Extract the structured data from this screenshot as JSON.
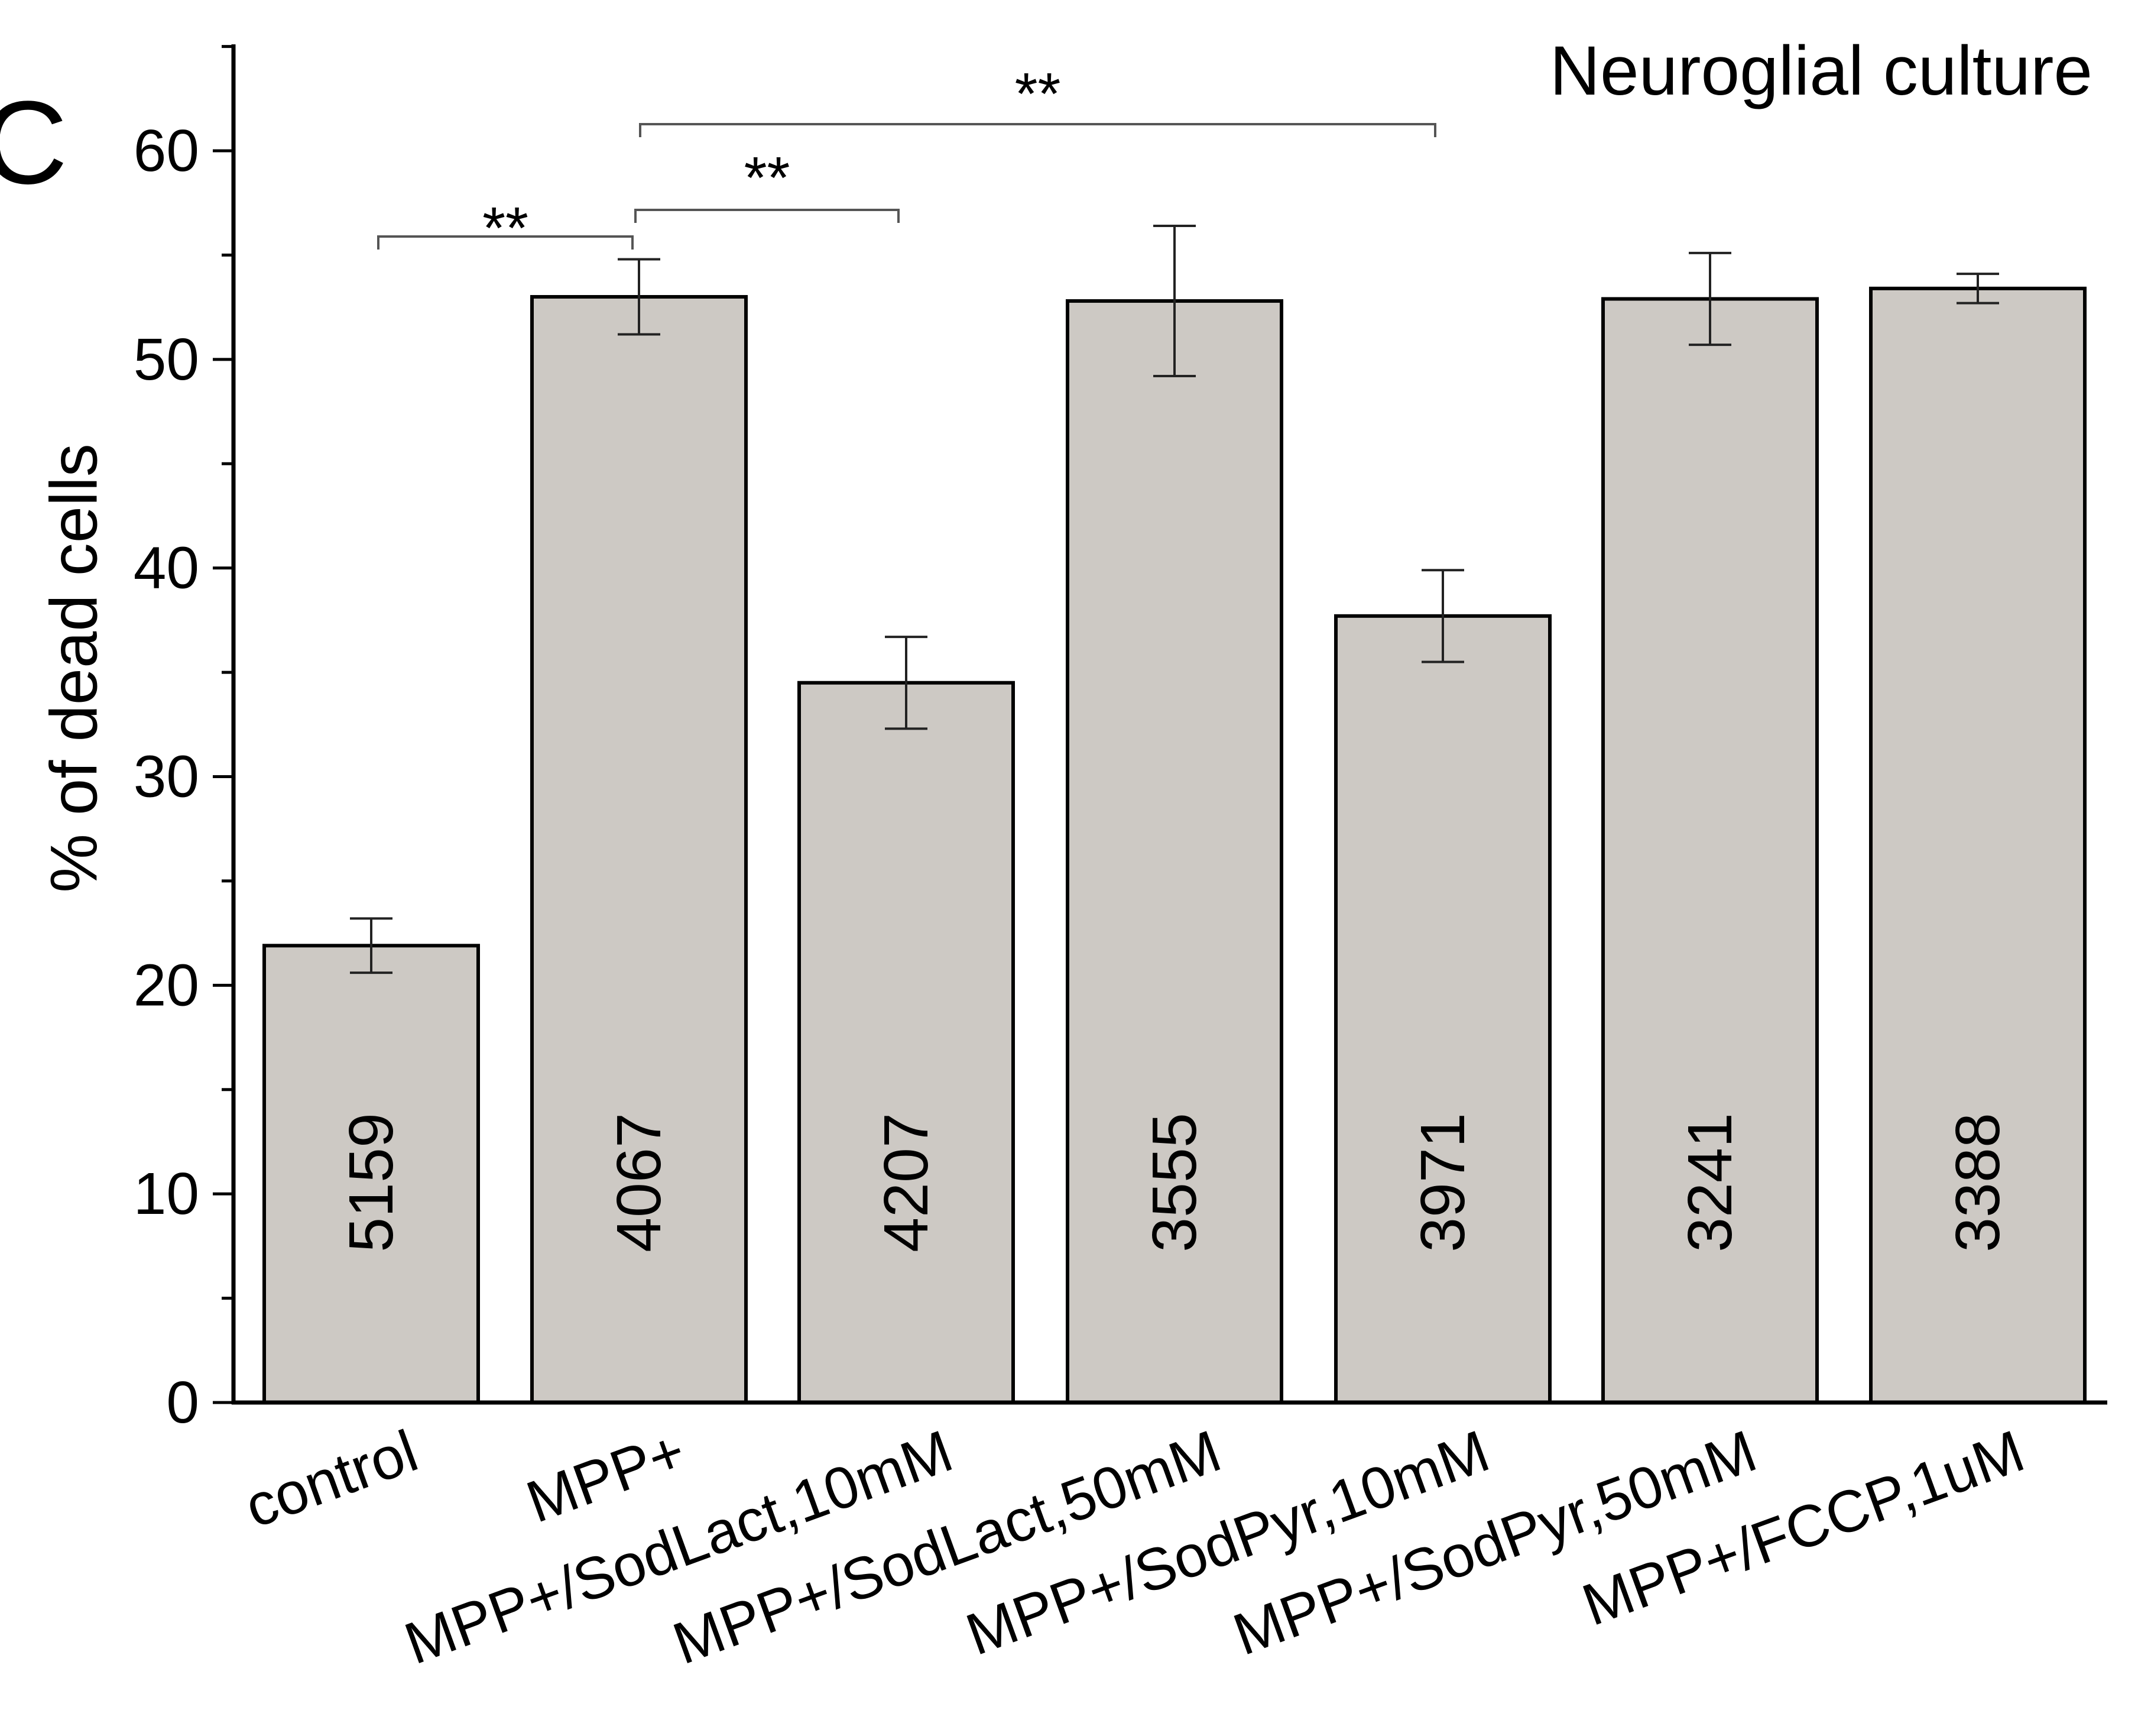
{
  "panel_label": "C",
  "chart_data": {
    "type": "bar",
    "title": "Neuroglial culture",
    "xlabel": "",
    "ylabel": "% of dead cells",
    "ylim": [
      0,
      65
    ],
    "yticks": [
      0,
      10,
      20,
      30,
      40,
      50,
      60
    ],
    "ytick_labels": [
      "0",
      "10",
      "20",
      "30",
      "40",
      "50",
      "60"
    ],
    "grid": false,
    "categories": [
      "control",
      "MPP+",
      "MPP+/SodLact,10mM",
      "MPP+/SodLact,50mM",
      "MPP+/SodPyr,10mM",
      "MPP+/SodPyr,50mM",
      "MPP+/FCCP,1uM"
    ],
    "values": [
      21.9,
      53.0,
      34.5,
      52.8,
      37.7,
      52.9,
      53.4
    ],
    "error": [
      1.3,
      1.8,
      2.2,
      3.6,
      2.2,
      2.2,
      0.7
    ],
    "n_labels": [
      "5159",
      "4067",
      "4207",
      "3555",
      "3971",
      "3241",
      "3388"
    ],
    "bar_color": "#cdc9c4",
    "significance": [
      {
        "from": 0,
        "to": 1,
        "label": "**"
      },
      {
        "from": 1,
        "to": 2,
        "label": "**"
      },
      {
        "from": 1,
        "to": 4,
        "label": "**"
      }
    ]
  }
}
